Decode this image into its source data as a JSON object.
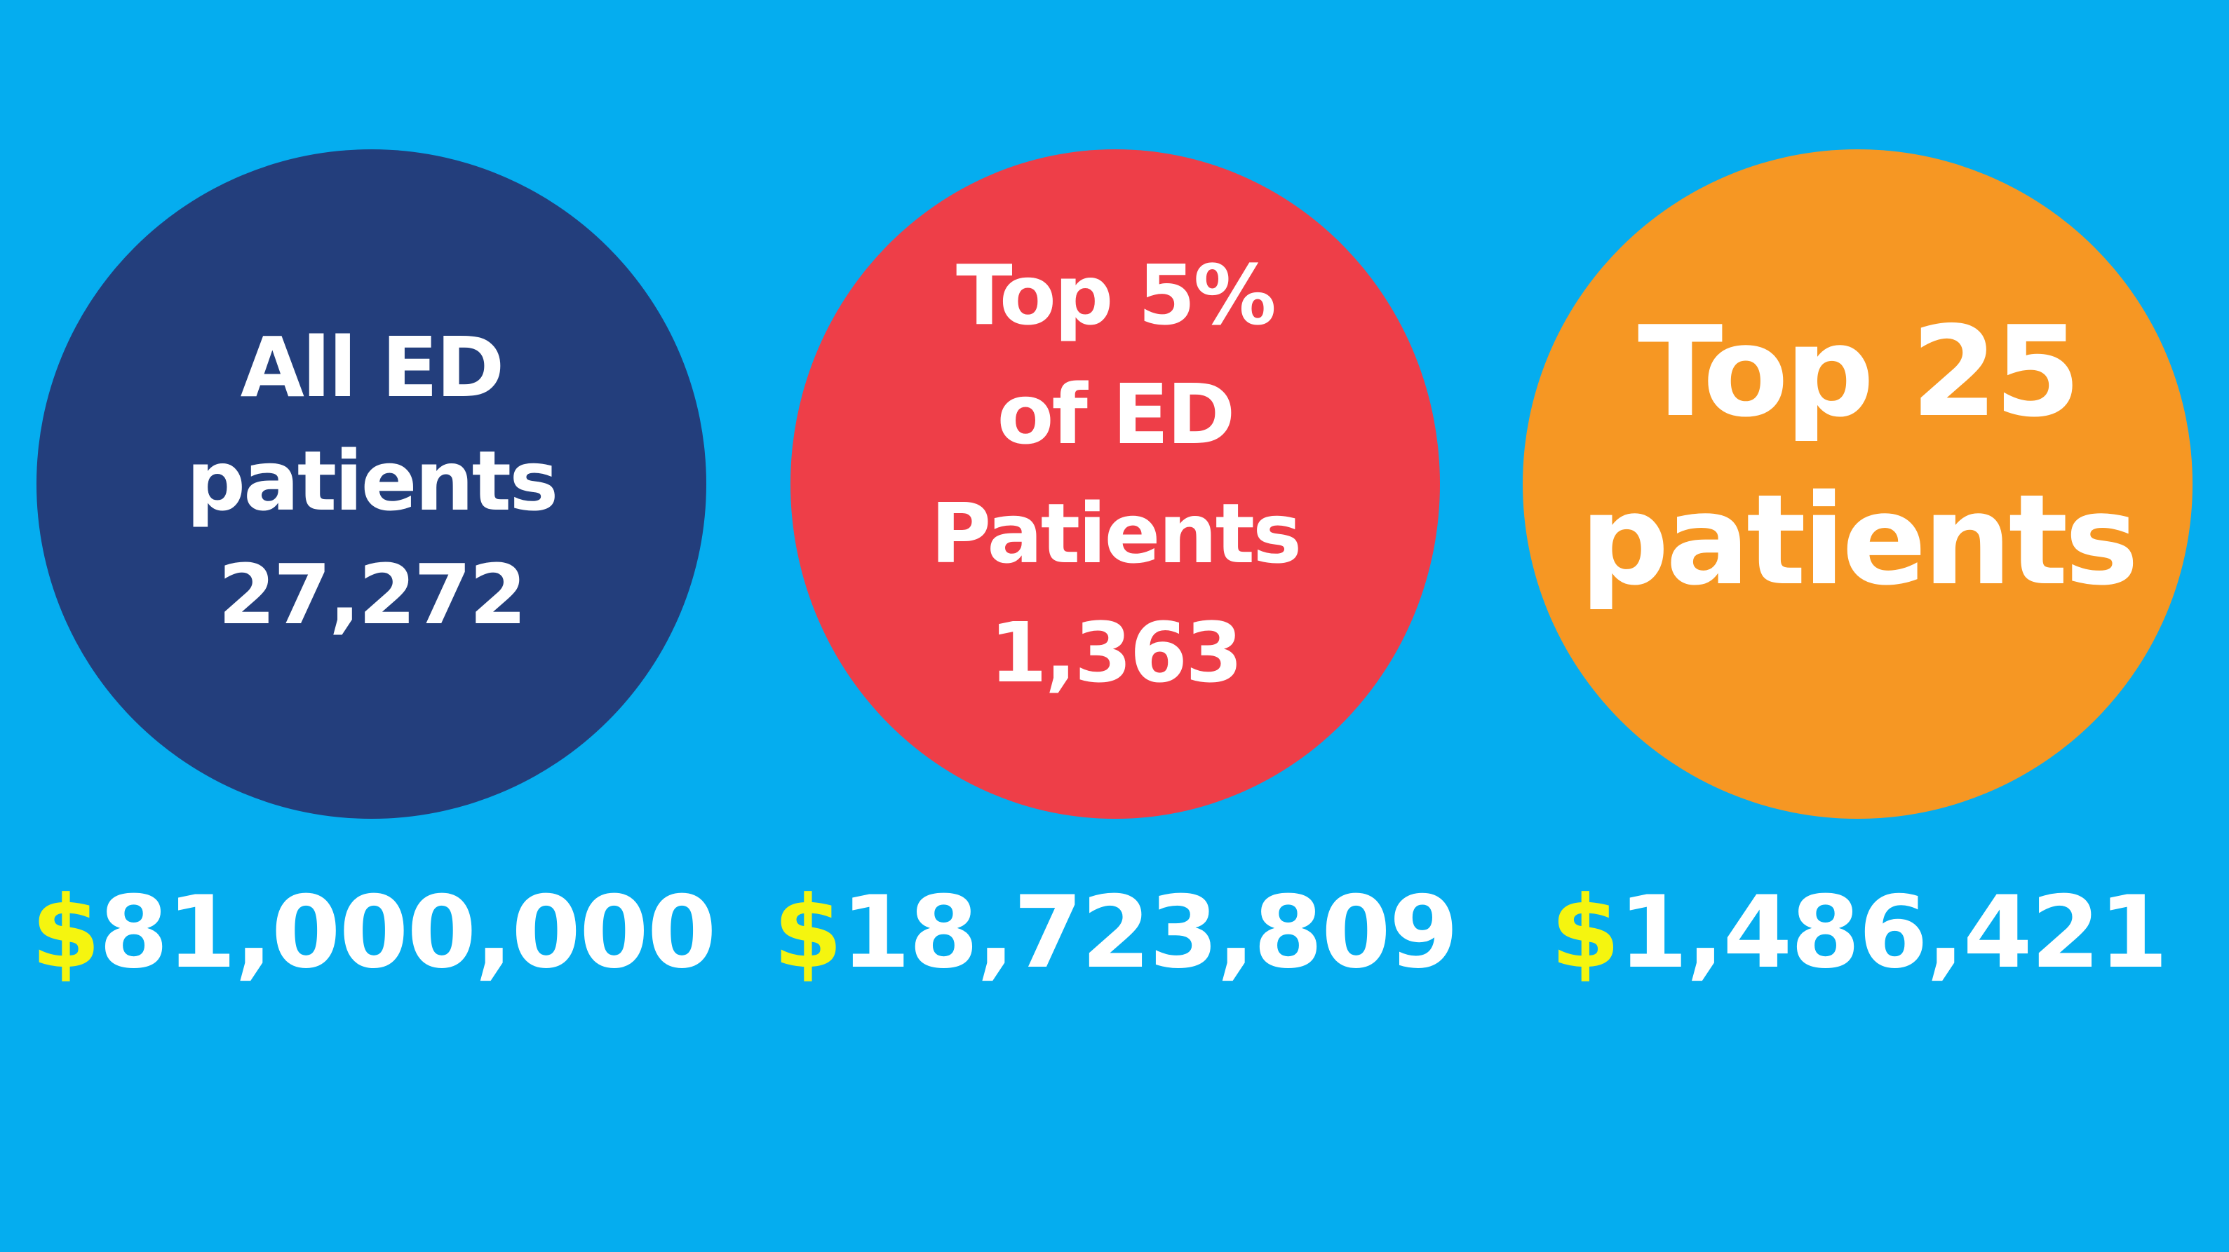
{
  "colors": {
    "background": "#05adef",
    "circle_all": "#233e7c",
    "circle_top5": "#ee3e48",
    "circle_top25": "#f69723",
    "text": "#ffffff",
    "dollar_sign": "#f5f50f"
  },
  "groups": [
    {
      "lines": [
        "All ED",
        "patients",
        "27,272"
      ],
      "currency": "$",
      "amount": "81,000,000"
    },
    {
      "lines": [
        "Top 5%",
        "of ED",
        "Patients",
        "1,363"
      ],
      "currency": "$",
      "amount": "18,723,809"
    },
    {
      "lines": [
        "Top 25",
        "patients"
      ],
      "currency": "$",
      "amount": "1,486,421"
    }
  ]
}
